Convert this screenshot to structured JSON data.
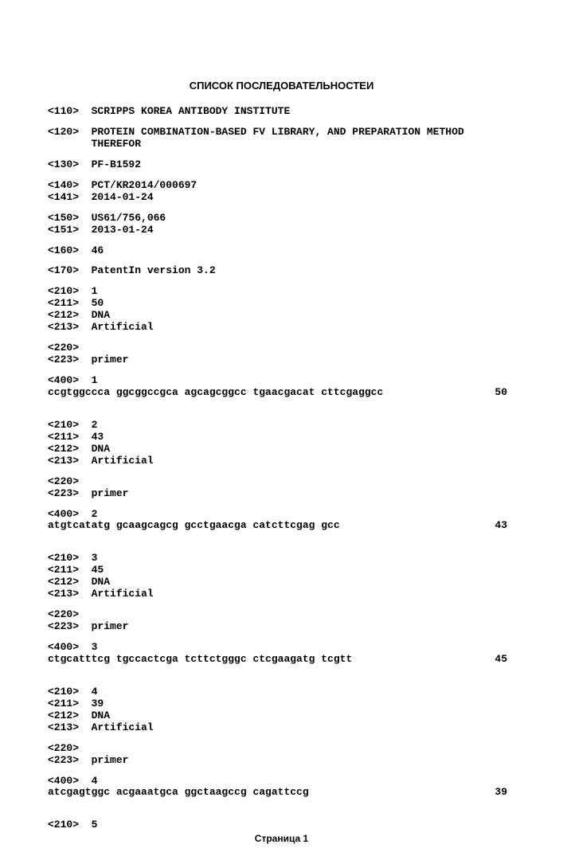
{
  "title": "СПИСОК ПОСЛЕДОВАТЕЛЬНОСТЕИ",
  "h110": "<110>  SCRIPPS KOREA ANTIBODY INSTITUTE",
  "h120a": "<120>  PROTEIN COMBINATION-BASED FV LIBRARY, AND PREPARATION METHOD",
  "h120b": "       THEREFOR",
  "h130": "<130>  PF-B1592",
  "h140": "<140>  PCT/KR2014/000697",
  "h141": "<141>  2014-01-24",
  "h150": "<150>  US61/756,066",
  "h151": "<151>  2013-01-24",
  "h160": "<160>  46",
  "h170": "<170>  PatentIn version 3.2",
  "s1": {
    "l210": "<210>  1",
    "l211": "<211>  50",
    "l212": "<212>  DNA",
    "l213": "<213>  Artificial",
    "l220": "<220>",
    "l223": "<223>  primer",
    "l400": "<400>  1",
    "seq": "ccgtggccca ggcggccgca agcagcggcc tgaacgacat cttcgaggcc",
    "len": "50"
  },
  "s2": {
    "l210": "<210>  2",
    "l211": "<211>  43",
    "l212": "<212>  DNA",
    "l213": "<213>  Artificial",
    "l220": "<220>",
    "l223": "<223>  primer",
    "l400": "<400>  2",
    "seq": "atgtcatatg gcaagcagcg gcctgaacga catcttcgag gcc",
    "len": "43"
  },
  "s3": {
    "l210": "<210>  3",
    "l211": "<211>  45",
    "l212": "<212>  DNA",
    "l213": "<213>  Artificial",
    "l220": "<220>",
    "l223": "<223>  primer",
    "l400": "<400>  3",
    "seq": "ctgcatttcg tgccactcga tcttctgggc ctcgaagatg tcgtt",
    "len": "45"
  },
  "s4": {
    "l210": "<210>  4",
    "l211": "<211>  39",
    "l212": "<212>  DNA",
    "l213": "<213>  Artificial",
    "l220": "<220>",
    "l223": "<223>  primer",
    "l400": "<400>  4",
    "seq": "atcgagtggc acgaaatgca ggctaagccg cagattccg",
    "len": "39"
  },
  "s5": {
    "l210": "<210>  5"
  },
  "footer": "Страница 1"
}
